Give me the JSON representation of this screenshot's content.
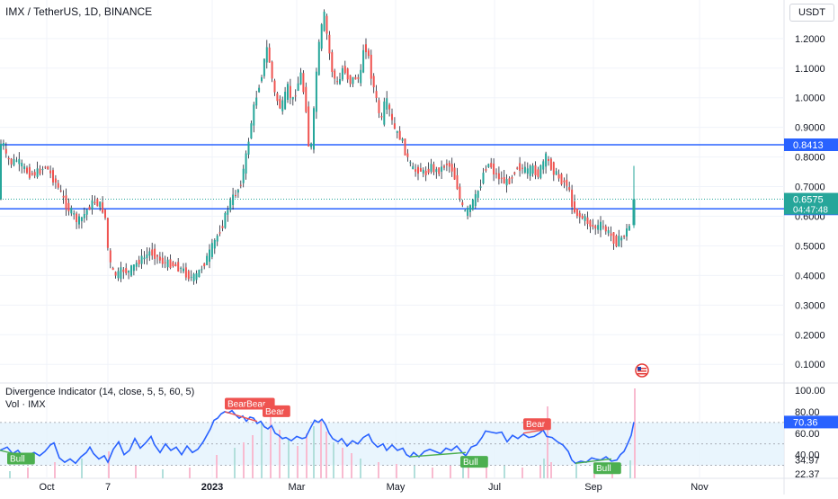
{
  "header": {
    "title": "IMX / TetherUS, 1D, BINANCE",
    "currency": "USDT"
  },
  "indicator": {
    "title": "Divergence Indicator (14, close, 5, 5, 60, 5)",
    "volume_title": "Vol · IMX"
  },
  "colors": {
    "up": "#26a69a",
    "down": "#ef5350",
    "hline": "#2962ff",
    "rsi_line": "#2962ff",
    "rsi_band": "#e3f2fd",
    "bull_label": "#4caf50",
    "bear_label": "#ef5350",
    "volume_up": "#b2dfdb",
    "volume_down": "#f8bbd0"
  },
  "chart_data": [
    {
      "type": "candlestick",
      "price_axis_ticks": [
        "1.2000",
        "1.1000",
        "1.0000",
        "0.9000",
        "0.8000",
        "0.7000",
        "0.6000",
        "0.5000",
        "0.4000",
        "0.3000",
        "0.2000",
        "0.1000"
      ],
      "price_axis_range": [
        0.04,
        1.33
      ],
      "x_axis_ticks": [
        "Oct",
        "7",
        "2023",
        "Mar",
        "May",
        "Jul",
        "Sep",
        "Nov"
      ],
      "horizontal_lines": [
        {
          "value": 0.8413,
          "label": "0.8413"
        },
        {
          "value": 0.625,
          "label": "0.6250"
        }
      ],
      "last_price": {
        "value": 0.6575,
        "label": "0.6575",
        "countdown": "04:47:48"
      },
      "path": [
        [
          0,
          0.82
        ],
        [
          4,
          0.86
        ],
        [
          8,
          0.8
        ],
        [
          14,
          0.78
        ],
        [
          20,
          0.79
        ],
        [
          28,
          0.76
        ],
        [
          36,
          0.74
        ],
        [
          44,
          0.75
        ],
        [
          52,
          0.77
        ],
        [
          58,
          0.74
        ],
        [
          64,
          0.71
        ],
        [
          70,
          0.67
        ],
        [
          76,
          0.63
        ],
        [
          82,
          0.61
        ],
        [
          88,
          0.58
        ],
        [
          94,
          0.6
        ],
        [
          100,
          0.63
        ],
        [
          106,
          0.65
        ],
        [
          112,
          0.64
        ],
        [
          118,
          0.61
        ],
        [
          122,
          0.47
        ],
        [
          126,
          0.41
        ],
        [
          132,
          0.4
        ],
        [
          138,
          0.42
        ],
        [
          144,
          0.41
        ],
        [
          150,
          0.43
        ],
        [
          156,
          0.45
        ],
        [
          162,
          0.46
        ],
        [
          168,
          0.48
        ],
        [
          174,
          0.47
        ],
        [
          180,
          0.45
        ],
        [
          186,
          0.44
        ],
        [
          192,
          0.44
        ],
        [
          198,
          0.43
        ],
        [
          204,
          0.42
        ],
        [
          210,
          0.4
        ],
        [
          216,
          0.39
        ],
        [
          220,
          0.4
        ],
        [
          226,
          0.43
        ],
        [
          232,
          0.46
        ],
        [
          238,
          0.5
        ],
        [
          244,
          0.54
        ],
        [
          250,
          0.58
        ],
        [
          256,
          0.64
        ],
        [
          262,
          0.67
        ],
        [
          268,
          0.7
        ],
        [
          274,
          0.78
        ],
        [
          278,
          0.86
        ],
        [
          282,
          0.94
        ],
        [
          286,
          1.0
        ],
        [
          290,
          1.05
        ],
        [
          294,
          1.1
        ],
        [
          298,
          1.17
        ],
        [
          302,
          1.11
        ],
        [
          306,
          1.02
        ],
        [
          310,
          0.99
        ],
        [
          314,
          0.96
        ],
        [
          318,
          1.0
        ],
        [
          322,
          1.04
        ],
        [
          326,
          0.98
        ],
        [
          330,
          1.02
        ],
        [
          336,
          1.08
        ],
        [
          342,
          0.96
        ],
        [
          346,
          0.78
        ],
        [
          350,
          0.93
        ],
        [
          354,
          1.12
        ],
        [
          358,
          1.22
        ],
        [
          362,
          1.28
        ],
        [
          366,
          1.19
        ],
        [
          370,
          1.1
        ],
        [
          374,
          1.06
        ],
        [
          378,
          1.04
        ],
        [
          382,
          1.1
        ],
        [
          386,
          1.09
        ],
        [
          390,
          1.05
        ],
        [
          396,
          1.07
        ],
        [
          402,
          1.06
        ],
        [
          406,
          1.18
        ],
        [
          410,
          1.16
        ],
        [
          414,
          1.08
        ],
        [
          418,
          1.02
        ],
        [
          422,
          0.96
        ],
        [
          426,
          0.92
        ],
        [
          430,
          1.0
        ],
        [
          434,
          0.96
        ],
        [
          438,
          0.91
        ],
        [
          442,
          0.88
        ],
        [
          446,
          0.87
        ],
        [
          450,
          0.84
        ],
        [
          456,
          0.78
        ],
        [
          462,
          0.75
        ],
        [
          468,
          0.76
        ],
        [
          474,
          0.74
        ],
        [
          480,
          0.77
        ],
        [
          486,
          0.75
        ],
        [
          492,
          0.76
        ],
        [
          498,
          0.78
        ],
        [
          504,
          0.76
        ],
        [
          510,
          0.7
        ],
        [
          514,
          0.64
        ],
        [
          518,
          0.61
        ],
        [
          522,
          0.62
        ],
        [
          526,
          0.64
        ],
        [
          530,
          0.66
        ],
        [
          536,
          0.71
        ],
        [
          540,
          0.76
        ],
        [
          546,
          0.78
        ],
        [
          552,
          0.74
        ],
        [
          558,
          0.73
        ],
        [
          564,
          0.71
        ],
        [
          570,
          0.73
        ],
        [
          576,
          0.77
        ],
        [
          582,
          0.76
        ],
        [
          588,
          0.75
        ],
        [
          594,
          0.76
        ],
        [
          600,
          0.74
        ],
        [
          604,
          0.77
        ],
        [
          608,
          0.8
        ],
        [
          614,
          0.77
        ],
        [
          620,
          0.74
        ],
        [
          626,
          0.72
        ],
        [
          632,
          0.71
        ],
        [
          636,
          0.66
        ],
        [
          640,
          0.62
        ],
        [
          646,
          0.6
        ],
        [
          652,
          0.59
        ],
        [
          658,
          0.57
        ],
        [
          664,
          0.56
        ],
        [
          670,
          0.57
        ],
        [
          676,
          0.55
        ],
        [
          682,
          0.53
        ],
        [
          686,
          0.51
        ],
        [
          690,
          0.52
        ],
        [
          694,
          0.53
        ],
        [
          698,
          0.55
        ],
        [
          702,
          0.57
        ],
        [
          705,
          0.6575
        ]
      ],
      "last_candle": {
        "open": 0.57,
        "close": 0.6575,
        "high": 0.77,
        "low": 0.56
      }
    },
    {
      "type": "line",
      "title": "Divergence Indicator (14, close, 5, 5, 60, 5)",
      "axis_ticks": [
        "100.00",
        "80.00",
        "60.00",
        "40.00",
        "34.97",
        "22.37"
      ],
      "axis_range": [
        18,
        105
      ],
      "band": [
        30,
        70
      ],
      "band_lines": [
        70,
        50,
        30
      ],
      "current_value": {
        "value": 70.36,
        "label": "70.36"
      },
      "points": [
        [
          0,
          44
        ],
        [
          8,
          47
        ],
        [
          14,
          41
        ],
        [
          20,
          44
        ],
        [
          26,
          38
        ],
        [
          32,
          40
        ],
        [
          38,
          42
        ],
        [
          44,
          39
        ],
        [
          50,
          43
        ],
        [
          56,
          49
        ],
        [
          60,
          51
        ],
        [
          66,
          37
        ],
        [
          72,
          33
        ],
        [
          78,
          36
        ],
        [
          84,
          32
        ],
        [
          90,
          38
        ],
        [
          96,
          42
        ],
        [
          100,
          47
        ],
        [
          104,
          41
        ],
        [
          110,
          36
        ],
        [
          116,
          39
        ],
        [
          120,
          33
        ],
        [
          126,
          45
        ],
        [
          132,
          52
        ],
        [
          138,
          40
        ],
        [
          144,
          44
        ],
        [
          150,
          55
        ],
        [
          156,
          46
        ],
        [
          162,
          51
        ],
        [
          168,
          57
        ],
        [
          172,
          49
        ],
        [
          178,
          42
        ],
        [
          184,
          50
        ],
        [
          190,
          44
        ],
        [
          196,
          47
        ],
        [
          202,
          40
        ],
        [
          208,
          48
        ],
        [
          214,
          42
        ],
        [
          220,
          45
        ],
        [
          226,
          52
        ],
        [
          230,
          58
        ],
        [
          234,
          64
        ],
        [
          238,
          72
        ],
        [
          242,
          74
        ],
        [
          246,
          78
        ],
        [
          250,
          80
        ],
        [
          254,
          79
        ],
        [
          258,
          81
        ],
        [
          262,
          77
        ],
        [
          266,
          74
        ],
        [
          270,
          76
        ],
        [
          274,
          71
        ],
        [
          278,
          75
        ],
        [
          282,
          74
        ],
        [
          286,
          69
        ],
        [
          290,
          71
        ],
        [
          294,
          66
        ],
        [
          298,
          64
        ],
        [
          302,
          67
        ],
        [
          306,
          60
        ],
        [
          310,
          58
        ],
        [
          314,
          55
        ],
        [
          318,
          56
        ],
        [
          324,
          53
        ],
        [
          330,
          57
        ],
        [
          336,
          55
        ],
        [
          340,
          56
        ],
        [
          346,
          66
        ],
        [
          350,
          72
        ],
        [
          354,
          70
        ],
        [
          358,
          73
        ],
        [
          362,
          68
        ],
        [
          366,
          60
        ],
        [
          370,
          55
        ],
        [
          376,
          52
        ],
        [
          380,
          55
        ],
        [
          386,
          48
        ],
        [
          392,
          53
        ],
        [
          398,
          50
        ],
        [
          404,
          56
        ],
        [
          410,
          59
        ],
        [
          414,
          52
        ],
        [
          420,
          47
        ],
        [
          426,
          50
        ],
        [
          430,
          44
        ],
        [
          436,
          49
        ],
        [
          442,
          44
        ],
        [
          448,
          46
        ],
        [
          452,
          40
        ],
        [
          456,
          38
        ],
        [
          460,
          42
        ],
        [
          466,
          38
        ],
        [
          472,
          43
        ],
        [
          478,
          45
        ],
        [
          484,
          43
        ],
        [
          490,
          41
        ],
        [
          496,
          46
        ],
        [
          502,
          44
        ],
        [
          508,
          48
        ],
        [
          514,
          42
        ],
        [
          518,
          39
        ],
        [
          524,
          47
        ],
        [
          530,
          49
        ],
        [
          536,
          56
        ],
        [
          540,
          62
        ],
        [
          546,
          61
        ],
        [
          552,
          60
        ],
        [
          558,
          61
        ],
        [
          564,
          52
        ],
        [
          570,
          58
        ],
        [
          576,
          55
        ],
        [
          582,
          59
        ],
        [
          588,
          56
        ],
        [
          594,
          57
        ],
        [
          600,
          60
        ],
        [
          604,
          63
        ],
        [
          608,
          57
        ],
        [
          614,
          56
        ],
        [
          620,
          52
        ],
        [
          626,
          49
        ],
        [
          632,
          43
        ],
        [
          636,
          35
        ],
        [
          640,
          32
        ],
        [
          646,
          34
        ],
        [
          652,
          33
        ],
        [
          658,
          37
        ],
        [
          662,
          36
        ],
        [
          668,
          35
        ],
        [
          674,
          38
        ],
        [
          680,
          34
        ],
        [
          686,
          35
        ],
        [
          690,
          40
        ],
        [
          694,
          43
        ],
        [
          698,
          50
        ],
        [
          702,
          58
        ],
        [
          705,
          70.36
        ]
      ],
      "divergence_labels": [
        {
          "text": "Bull",
          "kind": "bull",
          "x": 8,
          "value": 36
        },
        {
          "text": "BearBear",
          "kind": "bear",
          "x": 250,
          "value": 87
        },
        {
          "text": "Bear",
          "kind": "bear",
          "x": 292,
          "value": 80
        },
        {
          "text": "Bull",
          "kind": "bull",
          "x": 512,
          "value": 33
        },
        {
          "text": "Bear",
          "kind": "bear",
          "x": 582,
          "value": 68
        },
        {
          "text": "Bull",
          "kind": "bull",
          "x": 660,
          "value": 27
        }
      ],
      "divergence_lines": [
        {
          "kind": "bull",
          "from": [
            0,
            44
          ],
          "to": [
            20,
            40
          ]
        },
        {
          "kind": "bear",
          "from": [
            250,
            80
          ],
          "to": [
            286,
            71
          ]
        },
        {
          "kind": "bull",
          "from": [
            456,
            38
          ],
          "to": [
            518,
            42
          ]
        },
        {
          "kind": "bear",
          "from": [
            582,
            60
          ],
          "to": [
            604,
            63
          ]
        },
        {
          "kind": "bull",
          "from": [
            640,
            32
          ],
          "to": [
            680,
            36
          ]
        }
      ]
    }
  ],
  "volume": {
    "bars": [
      [
        10,
        8
      ],
      [
        30,
        12
      ],
      [
        60,
        18
      ],
      [
        90,
        22
      ],
      [
        120,
        30
      ],
      [
        150,
        14
      ],
      [
        180,
        10
      ],
      [
        210,
        12
      ],
      [
        240,
        26
      ],
      [
        260,
        34
      ],
      [
        270,
        40
      ],
      [
        280,
        48
      ],
      [
        290,
        62
      ],
      [
        300,
        70
      ],
      [
        310,
        54
      ],
      [
        320,
        44
      ],
      [
        330,
        36
      ],
      [
        340,
        50
      ],
      [
        348,
        58
      ],
      [
        356,
        64
      ],
      [
        362,
        52
      ],
      [
        370,
        40
      ],
      [
        380,
        34
      ],
      [
        390,
        28
      ],
      [
        400,
        22
      ],
      [
        420,
        18
      ],
      [
        440,
        16
      ],
      [
        460,
        14
      ],
      [
        480,
        12
      ],
      [
        500,
        14
      ],
      [
        514,
        20
      ],
      [
        520,
        16
      ],
      [
        540,
        12
      ],
      [
        560,
        14
      ],
      [
        580,
        12
      ],
      [
        600,
        14
      ],
      [
        604,
        22
      ],
      [
        608,
        80
      ],
      [
        612,
        18
      ],
      [
        640,
        16
      ],
      [
        660,
        18
      ],
      [
        680,
        16
      ],
      [
        700,
        20
      ],
      [
        705,
        100
      ]
    ]
  }
}
